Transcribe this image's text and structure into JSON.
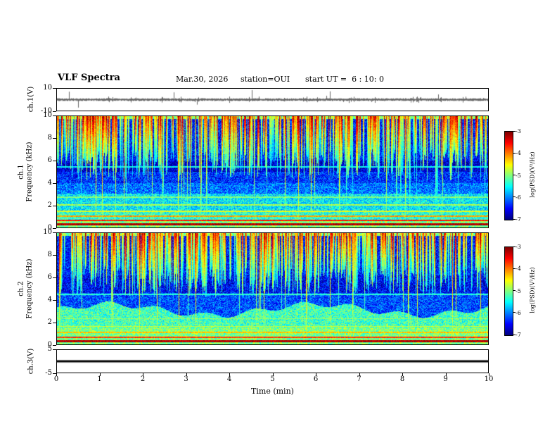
{
  "header": {
    "title": "VLF Spectra",
    "date": "Mar.30, 2026",
    "station": "station=OUI",
    "start_ut": "start UT =  6 : 10: 0"
  },
  "panels": {
    "ch1_wave": {
      "axis_label": "ch.1(V)",
      "yticks": [
        "10",
        "-10"
      ]
    },
    "ch1_spec": {
      "axis_label_channel": "ch.1",
      "axis_label_freq": "Frequency (kHz)",
      "yticks": [
        "10",
        "8",
        "6",
        "4",
        "2",
        "0"
      ]
    },
    "ch2_spec": {
      "axis_label_channel": "ch.2",
      "axis_label_freq": "Frequency (kHz)",
      "yticks": [
        "10",
        "8",
        "6",
        "4",
        "2",
        "0"
      ]
    },
    "ch3_wave": {
      "axis_label": "ch.3(V)",
      "yticks": [
        "5",
        "-5"
      ]
    }
  },
  "xaxis": {
    "label": "Time (min)",
    "ticks": [
      "0",
      "1",
      "2",
      "3",
      "4",
      "5",
      "6",
      "7",
      "8",
      "9",
      "10"
    ]
  },
  "colorbar": {
    "label": "log(PSD)(V²/Hz)",
    "ticks": [
      "-3",
      "-4",
      "-5",
      "-6",
      "-7"
    ]
  },
  "chart_data": [
    {
      "type": "line",
      "name": "ch.1 time series",
      "ylabel": "ch.1(V)",
      "ylim": [
        -10,
        10
      ],
      "xlabel": "Time (min)",
      "xlim": [
        0,
        10
      ],
      "description": "Dense broadband noise trace centered on 0 V, typical amplitude about ±2 V, with sporadic impulsive spikes reaching roughly ±8 V throughout the 10-minute record."
    },
    {
      "type": "heatmap",
      "name": "ch.1 spectrogram",
      "ylabel": "Frequency (kHz)",
      "ylim": [
        0,
        10
      ],
      "xlabel": "Time (min)",
      "xlim": [
        0,
        10
      ],
      "colorbar": {
        "label": "log(PSD)(V²/Hz)",
        "range": [
          -7,
          -3
        ],
        "colormap": "jet"
      },
      "description": "Blue noise background (~-6.5); dense green/yellow vertical sferic streaks (~-4.5 to -4) descending from 10 kHz to about 5 kHz, a few reaching 0 kHz; continuous bright green band below ~3 kHz (~-5); red/orange horizontal lines near 0.3, 0.6 and 1 kHz (~-3.5); dark navy quiet band around 5-6 kHz (~-7)."
    },
    {
      "type": "heatmap",
      "name": "ch.2 spectrogram",
      "ylabel": "Frequency (kHz)",
      "ylim": [
        0,
        10
      ],
      "xlabel": "Time (min)",
      "xlim": [
        0,
        10
      ],
      "colorbar": {
        "label": "log(PSD)(V²/Hz)",
        "range": [
          -7,
          -3
        ],
        "colormap": "jet"
      },
      "description": "Similar to ch.1: blue background with dense green/yellow vertical streaks above ~5 kHz, several full-height streaks, a wavy bright green band below ~3 kHz, orange/red horizontal lines below 1 kHz, and a darker band near 4.5-6 kHz."
    },
    {
      "type": "line",
      "name": "ch.3 time series",
      "ylabel": "ch.3(V)",
      "ylim": [
        -5,
        5
      ],
      "xlabel": "Time (min)",
      "xlim": [
        0,
        10
      ],
      "description": "Flat constant line at 0 V for the entire record."
    }
  ]
}
